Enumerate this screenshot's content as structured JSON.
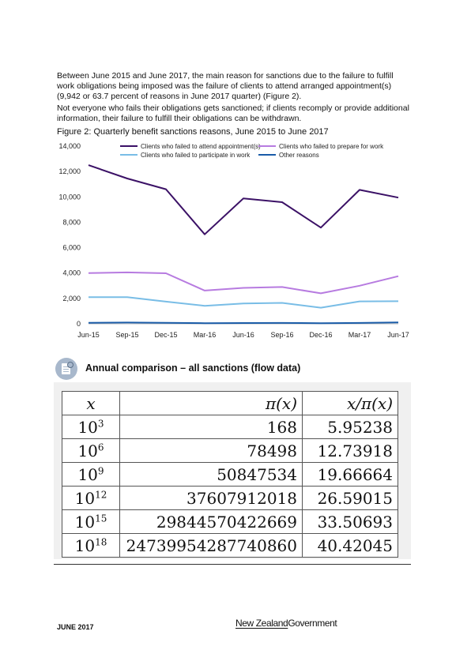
{
  "paragraphs": {
    "p1": "Between June 2015 and June 2017, the main reason for sanctions due to the failure to fulfill work obligations being imposed was the failure of clients to attend arranged appointment(s) (9,942 or 63.7 percent of reasons in June 2017 quarter) (Figure 2).",
    "p2": "Not everyone who fails their obligations gets sanctioned; if clients recomply or provide additional information, their failure to fulfill their obligations can be withdrawn."
  },
  "figure": {
    "caption": "Figure 2: Quarterly benefit sanctions reasons, June 2015 to June 2017"
  },
  "chart_data": {
    "type": "line",
    "title": "",
    "xlabel": "",
    "ylabel": "",
    "categories": [
      "Jun-15",
      "Sep-15",
      "Dec-15",
      "Mar-16",
      "Jun-16",
      "Sep-16",
      "Dec-16",
      "Mar-17",
      "Jun-17"
    ],
    "yticks": [
      "0",
      "2,000",
      "4,000",
      "6,000",
      "8,000",
      "10,000",
      "12,000",
      "14,000"
    ],
    "ylim": [
      0,
      14000
    ],
    "grid": false,
    "legend": "top",
    "series": [
      {
        "name": "Clients who failed to attend appointment(s)",
        "color": "#3b1166",
        "values": [
          12500,
          11450,
          10600,
          7050,
          9880,
          9580,
          7580,
          10550,
          9942
        ]
      },
      {
        "name": "Clients who failed to prepare for work",
        "color": "#b77be0",
        "values": [
          4000,
          4050,
          3980,
          2620,
          2830,
          2900,
          2400,
          3000,
          3750
        ]
      },
      {
        "name": "Clients who failed to participate in work",
        "color": "#79bde6",
        "values": [
          2100,
          2100,
          1750,
          1420,
          1600,
          1650,
          1270,
          1770,
          1780
        ]
      },
      {
        "name": "Other reasons",
        "color": "#1a5ca8",
        "values": [
          80,
          100,
          80,
          50,
          60,
          70,
          50,
          70,
          110
        ]
      }
    ]
  },
  "section": {
    "icon": "document-search-icon",
    "title": "Annual comparison – all sanctions (flow data)"
  },
  "table": {
    "headers": [
      "x",
      "π(x)",
      "x/π(x)"
    ],
    "rows": [
      {
        "base": "10",
        "exp": "3",
        "pi": "168",
        "ratio": "5.95238"
      },
      {
        "base": "10",
        "exp": "6",
        "pi": "78498",
        "ratio": "12.73918"
      },
      {
        "base": "10",
        "exp": "9",
        "pi": "50847534",
        "ratio": "19.66664"
      },
      {
        "base": "10",
        "exp": "12",
        "pi": "37607912018",
        "ratio": "26.59015"
      },
      {
        "base": "10",
        "exp": "15",
        "pi": "29844570422669",
        "ratio": "33.50693"
      },
      {
        "base": "10",
        "exp": "18",
        "pi": "24739954287740860",
        "ratio": "40.42045"
      }
    ]
  },
  "footer": {
    "date": "JUNE 2017",
    "logo_first": "New Zealand",
    "logo_second": "Government"
  }
}
